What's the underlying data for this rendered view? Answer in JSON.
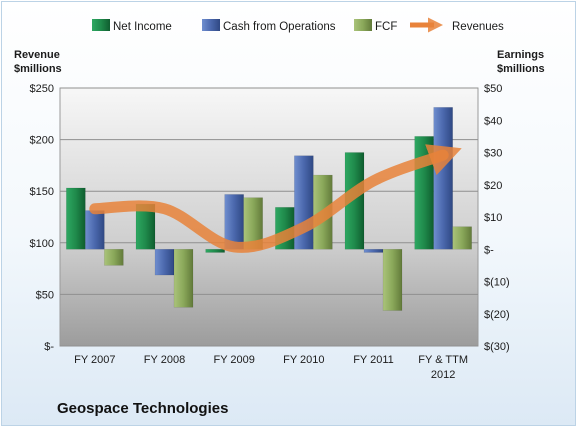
{
  "company_name": "Geospace Technologies",
  "colors": {
    "net_income": "#1e8a4a",
    "cash_from_operations": "#4a6aad",
    "fcf": "#8aa85a",
    "revenues": "#e8823a"
  },
  "chart_data": {
    "type": "bar",
    "categories": [
      "FY 2007",
      "FY 2008",
      "FY 2009",
      "FY 2010",
      "FY 2011",
      "FY & TTM|2012"
    ],
    "series": [
      {
        "name": "Net Income",
        "axis": "right",
        "values": [
          19,
          14,
          -1,
          13,
          30,
          35
        ]
      },
      {
        "name": "Cash from Operations",
        "axis": "right",
        "values": [
          12,
          -8,
          17,
          29,
          -1,
          44
        ]
      },
      {
        "name": "FCF",
        "axis": "right",
        "values": [
          -5,
          -18,
          16,
          23,
          -19,
          7
        ]
      },
      {
        "name": "Revenues",
        "type": "line",
        "axis": "left",
        "values": [
          133,
          133,
          96,
          115,
          160,
          185
        ]
      }
    ],
    "left_axis": {
      "label_lines": [
        "Revenue",
        "$millions"
      ],
      "ticks": [
        "$250",
        "$200",
        "$150",
        "$100",
        "$50",
        "$-"
      ],
      "ylim": [
        0,
        250
      ]
    },
    "right_axis": {
      "label_lines": [
        "Earnings",
        "$millions"
      ],
      "ticks": [
        "$50",
        "$40",
        "$30",
        "$20",
        "$10",
        "$-",
        "$(10)",
        "$(20)",
        "$(30)"
      ],
      "ylim": [
        -30,
        50
      ]
    },
    "legend": {
      "position": "top",
      "items": [
        "Net Income",
        "Cash from Operations",
        "FCF",
        "Revenues"
      ]
    },
    "grid": true
  }
}
